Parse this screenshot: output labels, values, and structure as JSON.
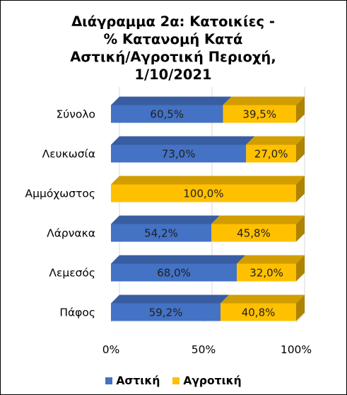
{
  "chart_data": {
    "type": "bar",
    "orientation": "horizontal",
    "stacked": "percent",
    "style": "3d",
    "title_lines": [
      "Διάγραμμα 2α: Κατοικίες -",
      "% Κατανομή Κατά",
      "Αστική/Αγροτική Περιοχή,",
      "1/10/2021"
    ],
    "categories": [
      "Σύνολο",
      "Λευκωσία",
      "Αμμόχωστος",
      "Λάρνακα",
      "Λεμεσός",
      "Πάφος"
    ],
    "series": [
      {
        "name": "Αστική",
        "color": "#4472C4",
        "values": [
          60.5,
          73.0,
          0,
          54.2,
          68.0,
          59.2
        ],
        "labels": [
          "60,5%",
          "73,0%",
          "",
          "54,2%",
          "68,0%",
          "59,2%"
        ]
      },
      {
        "name": "Αγροτική",
        "color": "#FFC000",
        "values": [
          39.5,
          27.0,
          100.0,
          45.8,
          32.0,
          40.8
        ],
        "labels": [
          "39,5%",
          "27,0%",
          "100,0%",
          "45,8%",
          "32,0%",
          "40,8%"
        ]
      }
    ],
    "x_ticks": [
      0,
      50,
      100
    ],
    "x_tick_labels": [
      "0%",
      "50%",
      "100%"
    ],
    "xlim": [
      0,
      100
    ],
    "grid": true,
    "legend_position": "bottom"
  }
}
